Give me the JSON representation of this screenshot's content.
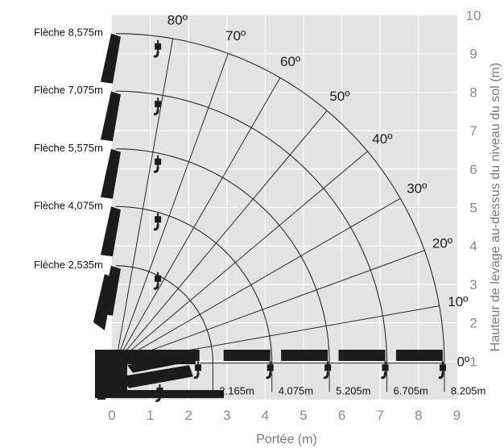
{
  "chart_data": {
    "type": "line",
    "title": "",
    "xlabel": "Portée (m)",
    "ylabel": "Hauteur de levage au-dessus du niveau du sol (m)",
    "xlim": [
      0,
      9
    ],
    "ylim": [
      0,
      10
    ],
    "x_ticks": [
      "0",
      "1",
      "2",
      "3",
      "4",
      "5",
      "6",
      "7",
      "8",
      "9"
    ],
    "y_ticks": [
      "1",
      "2",
      "3",
      "4",
      "5",
      "6",
      "7",
      "8",
      "9",
      "10"
    ],
    "grid": true,
    "pivot": [
      0.1,
      0.95
    ],
    "angle_lines": [
      {
        "label": "0º",
        "angle": 0
      },
      {
        "label": "10º",
        "angle": 10
      },
      {
        "label": "20º",
        "angle": 20
      },
      {
        "label": "30º",
        "angle": 30
      },
      {
        "label": "40º",
        "angle": 40
      },
      {
        "label": "50º",
        "angle": 50
      },
      {
        "label": "60º",
        "angle": 60
      },
      {
        "label": "70º",
        "angle": 70
      },
      {
        "label": "80º",
        "angle": 80
      }
    ],
    "booms": [
      {
        "name": "Flèche 2,535m",
        "length": 2.535,
        "reach_label": "2.165m"
      },
      {
        "name": "Flèche 4,075m",
        "length": 4.075,
        "reach_label": "4.075m"
      },
      {
        "name": "Flèche 5,575m",
        "length": 5.575,
        "reach_label": "5.205m"
      },
      {
        "name": "Flèche 7,075m",
        "length": 7.075,
        "reach_label": "6.705m"
      },
      {
        "name": "Flèche 8,575m",
        "length": 8.575,
        "reach_label": "8.205m"
      }
    ],
    "colors": {
      "panel": "#e3e3e3",
      "grid": "#ffffff",
      "curve": "#2a2a2a",
      "crane": "#1c1c1c"
    }
  }
}
